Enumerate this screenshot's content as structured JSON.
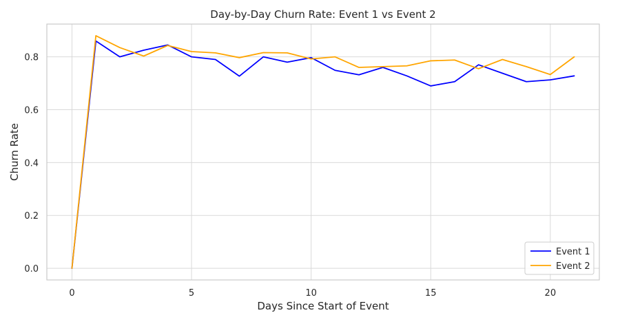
{
  "chart_data": {
    "type": "line",
    "title": "Day-by-Day Churn Rate: Event 1 vs Event 2",
    "xlabel": "Days Since Start of Event",
    "ylabel": "Churn Rate",
    "xlim": [
      -1.05,
      22.05
    ],
    "ylim": [
      -0.044,
      0.924
    ],
    "xticks": [
      0,
      5,
      10,
      15,
      20
    ],
    "yticks": [
      0.0,
      0.2,
      0.4,
      0.6,
      0.8
    ],
    "xtick_labels": [
      "0",
      "5",
      "10",
      "15",
      "20"
    ],
    "ytick_labels": [
      "0.0",
      "0.2",
      "0.4",
      "0.6",
      "0.8"
    ],
    "grid": true,
    "legend_position": "bottom-right",
    "x": [
      0,
      1,
      2,
      3,
      4,
      5,
      6,
      7,
      8,
      9,
      10,
      11,
      12,
      13,
      14,
      15,
      16,
      17,
      18,
      19,
      20,
      21
    ],
    "series": [
      {
        "name": "Event 1",
        "color": "#0000ff",
        "values": [
          0.0,
          0.86,
          0.8,
          0.825,
          0.845,
          0.8,
          0.79,
          0.727,
          0.8,
          0.78,
          0.797,
          0.749,
          0.732,
          0.76,
          0.728,
          0.69,
          0.706,
          0.77,
          0.738,
          0.706,
          0.713,
          0.728
        ]
      },
      {
        "name": "Event 2",
        "color": "#ffa500",
        "values": [
          0.0,
          0.88,
          0.835,
          0.803,
          0.843,
          0.82,
          0.815,
          0.797,
          0.816,
          0.815,
          0.792,
          0.8,
          0.76,
          0.763,
          0.766,
          0.785,
          0.788,
          0.755,
          0.79,
          0.763,
          0.733,
          0.8
        ]
      }
    ]
  }
}
